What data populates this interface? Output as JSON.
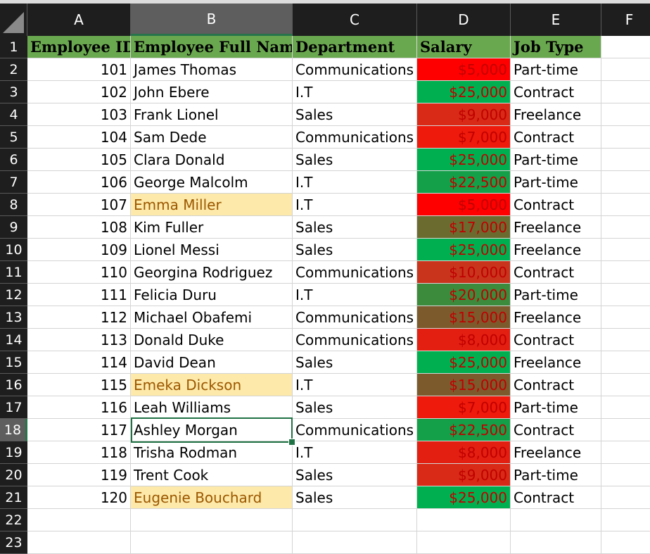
{
  "spreadsheet": {
    "columns": [
      "A",
      "B",
      "C",
      "D",
      "E",
      "F"
    ],
    "selected_column": "B",
    "selected_row": "18",
    "header": [
      "Employee ID",
      "Employee Full Name",
      "Department",
      "Salary",
      "Job Type"
    ],
    "rows": [
      {
        "n": "2",
        "id": "101",
        "name": "James Thomas",
        "dept": "Communications",
        "salary": "$5,000",
        "type": "Part-time",
        "fill": "#ff0000"
      },
      {
        "n": "3",
        "id": "102",
        "name": "John Ebere",
        "dept": "I.T",
        "salary": "$25,000",
        "type": "Contract",
        "fill": "#00b050"
      },
      {
        "n": "4",
        "id": "103",
        "name": "Frank Lionel",
        "dept": "Sales",
        "salary": "$9,000",
        "type": "Freelance",
        "fill": "#d82a16"
      },
      {
        "n": "5",
        "id": "104",
        "name": "Sam Dede",
        "dept": "Communications",
        "salary": "$7,000",
        "type": "Contract",
        "fill": "#ee1a0b"
      },
      {
        "n": "6",
        "id": "105",
        "name": "Clara Donald",
        "dept": "Sales",
        "salary": "$25,000",
        "type": "Part-time",
        "fill": "#00b050"
      },
      {
        "n": "7",
        "id": "106",
        "name": "George Malcolm",
        "dept": "I.T",
        "salary": "$22,500",
        "type": "Part-time",
        "fill": "#13a048"
      },
      {
        "n": "8",
        "id": "107",
        "name": "Emma Miller",
        "dept": "I.T",
        "salary": "$5,000",
        "type": "Contract",
        "fill": "#ff0000",
        "hl": true
      },
      {
        "n": "9",
        "id": "108",
        "name": "Kim Fuller",
        "dept": "Sales",
        "salary": "$17,000",
        "type": "Freelance",
        "fill": "#6b6b30"
      },
      {
        "n": "10",
        "id": "109",
        "name": "Lionel Messi",
        "dept": "Sales",
        "salary": "$25,000",
        "type": "Freelance",
        "fill": "#00b050"
      },
      {
        "n": "11",
        "id": "110",
        "name": "Georgina Rodriguez",
        "dept": "Communications",
        "salary": "$10,000",
        "type": "Contract",
        "fill": "#c9341d"
      },
      {
        "n": "12",
        "id": "111",
        "name": "Felicia Duru",
        "dept": "I.T",
        "salary": "$20,000",
        "type": "Part-time",
        "fill": "#3c8a3c"
      },
      {
        "n": "13",
        "id": "112",
        "name": "Michael Obafemi",
        "dept": "Communications",
        "salary": "$15,000",
        "type": "Freelance",
        "fill": "#7c5a2c"
      },
      {
        "n": "14",
        "id": "113",
        "name": "Donald Duke",
        "dept": "Communications",
        "salary": "$8,000",
        "type": "Contract",
        "fill": "#e31f12"
      },
      {
        "n": "15",
        "id": "114",
        "name": "David Dean",
        "dept": "Sales",
        "salary": "$25,000",
        "type": "Freelance",
        "fill": "#00b050"
      },
      {
        "n": "16",
        "id": "115",
        "name": "Emeka Dickson",
        "dept": "I.T",
        "salary": "$15,000",
        "type": "Contract",
        "fill": "#7c5a2c",
        "hl": true
      },
      {
        "n": "17",
        "id": "116",
        "name": "Leah Williams",
        "dept": "Sales",
        "salary": "$7,000",
        "type": "Part-time",
        "fill": "#ee1a0b"
      },
      {
        "n": "18",
        "id": "117",
        "name": "Ashley Morgan",
        "dept": "Communications",
        "salary": "$22,500",
        "type": "Contract",
        "fill": "#13a048"
      },
      {
        "n": "19",
        "id": "118",
        "name": "Trisha Rodman",
        "dept": "I.T",
        "salary": "$8,000",
        "type": "Freelance",
        "fill": "#e31f12"
      },
      {
        "n": "20",
        "id": "119",
        "name": "Trent Cook",
        "dept": "Sales",
        "salary": "$9,000",
        "type": "Part-time",
        "fill": "#d82a16"
      },
      {
        "n": "21",
        "id": "120",
        "name": "Eugenie Bouchard",
        "dept": "Sales",
        "salary": "$25,000",
        "type": "Contract",
        "fill": "#00b050",
        "hl": true
      }
    ],
    "row_numbers": [
      "1",
      "22",
      "23"
    ],
    "colors": {
      "header_fill": "#6aa84f",
      "highlight_fill": "#fde9a9",
      "highlight_text": "#9c5700",
      "selection_border": "#1f7244"
    }
  }
}
